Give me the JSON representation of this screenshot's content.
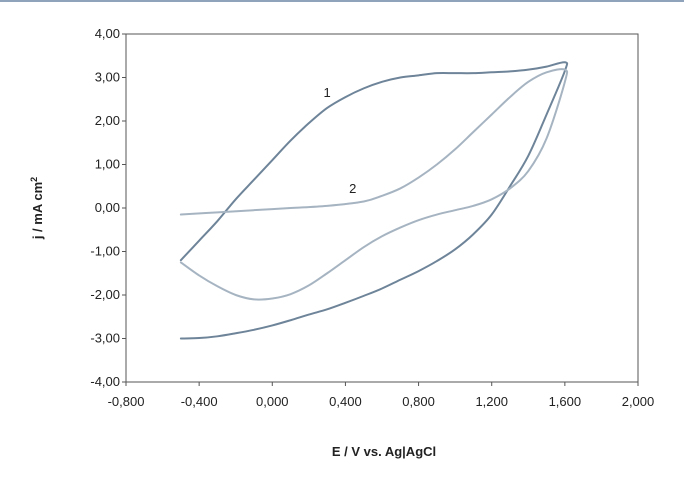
{
  "chart_data": {
    "type": "line",
    "title": "",
    "xlabel": "E / V vs. Ag|AgCl",
    "ylabel": "j / mA cm",
    "ylabel_superscript": "2",
    "xlim": [
      -0.8,
      2.0
    ],
    "ylim": [
      -4.0,
      4.0
    ],
    "xticks": [
      "-0,800",
      "-0,400",
      "0,000",
      "0,400",
      "0,800",
      "1,200",
      "1,600",
      "2,000"
    ],
    "yticks": [
      "4,00",
      "3,00",
      "2,00",
      "1,00",
      "0,00",
      "-1,00",
      "-2,00",
      "-3,00",
      "-4,00"
    ],
    "grid": false,
    "legend": "none",
    "series": [
      {
        "name": "1",
        "color": "#6e8499",
        "x": [
          -0.5,
          -0.4,
          -0.3,
          -0.2,
          -0.1,
          0.0,
          0.1,
          0.2,
          0.3,
          0.4,
          0.5,
          0.6,
          0.7,
          0.8,
          0.9,
          1.0,
          1.1,
          1.2,
          1.3,
          1.4,
          1.5,
          1.6,
          1.6,
          1.5,
          1.4,
          1.3,
          1.2,
          1.1,
          1.0,
          0.9,
          0.8,
          0.7,
          0.6,
          0.5,
          0.4,
          0.3,
          0.2,
          0.1,
          0.0,
          -0.1,
          -0.2,
          -0.3,
          -0.4,
          -0.5
        ],
        "y": [
          -1.2,
          -0.75,
          -0.3,
          0.2,
          0.65,
          1.1,
          1.55,
          1.95,
          2.3,
          2.55,
          2.75,
          2.9,
          3.0,
          3.05,
          3.1,
          3.1,
          3.1,
          3.12,
          3.14,
          3.18,
          3.25,
          3.35,
          3.15,
          2.15,
          1.2,
          0.5,
          -0.15,
          -0.6,
          -0.95,
          -1.22,
          -1.45,
          -1.65,
          -1.85,
          -2.02,
          -2.18,
          -2.33,
          -2.45,
          -2.58,
          -2.7,
          -2.8,
          -2.88,
          -2.95,
          -2.99,
          -3.0
        ],
        "label": "1",
        "label_at": [
          0.28,
          2.55
        ]
      },
      {
        "name": "2",
        "color": "#a6b4c2",
        "x": [
          -0.5,
          -0.3,
          -0.1,
          0.1,
          0.3,
          0.5,
          0.6,
          0.7,
          0.8,
          0.9,
          1.0,
          1.1,
          1.2,
          1.3,
          1.4,
          1.5,
          1.6,
          1.6,
          1.5,
          1.4,
          1.3,
          1.2,
          1.1,
          1.0,
          0.9,
          0.8,
          0.7,
          0.6,
          0.5,
          0.4,
          0.3,
          0.2,
          0.1,
          0.0,
          -0.1,
          -0.2,
          -0.3,
          -0.4,
          -0.5
        ],
        "y": [
          -0.15,
          -0.1,
          -0.05,
          0.0,
          0.05,
          0.15,
          0.28,
          0.45,
          0.7,
          1.0,
          1.35,
          1.75,
          2.15,
          2.55,
          2.9,
          3.12,
          3.18,
          2.9,
          1.6,
          0.85,
          0.45,
          0.2,
          0.05,
          -0.05,
          -0.15,
          -0.28,
          -0.45,
          -0.65,
          -0.9,
          -1.2,
          -1.5,
          -1.78,
          -1.98,
          -2.08,
          -2.1,
          -2.0,
          -1.8,
          -1.55,
          -1.25
        ],
        "label": "2",
        "label_at": [
          0.42,
          0.35
        ]
      }
    ]
  }
}
